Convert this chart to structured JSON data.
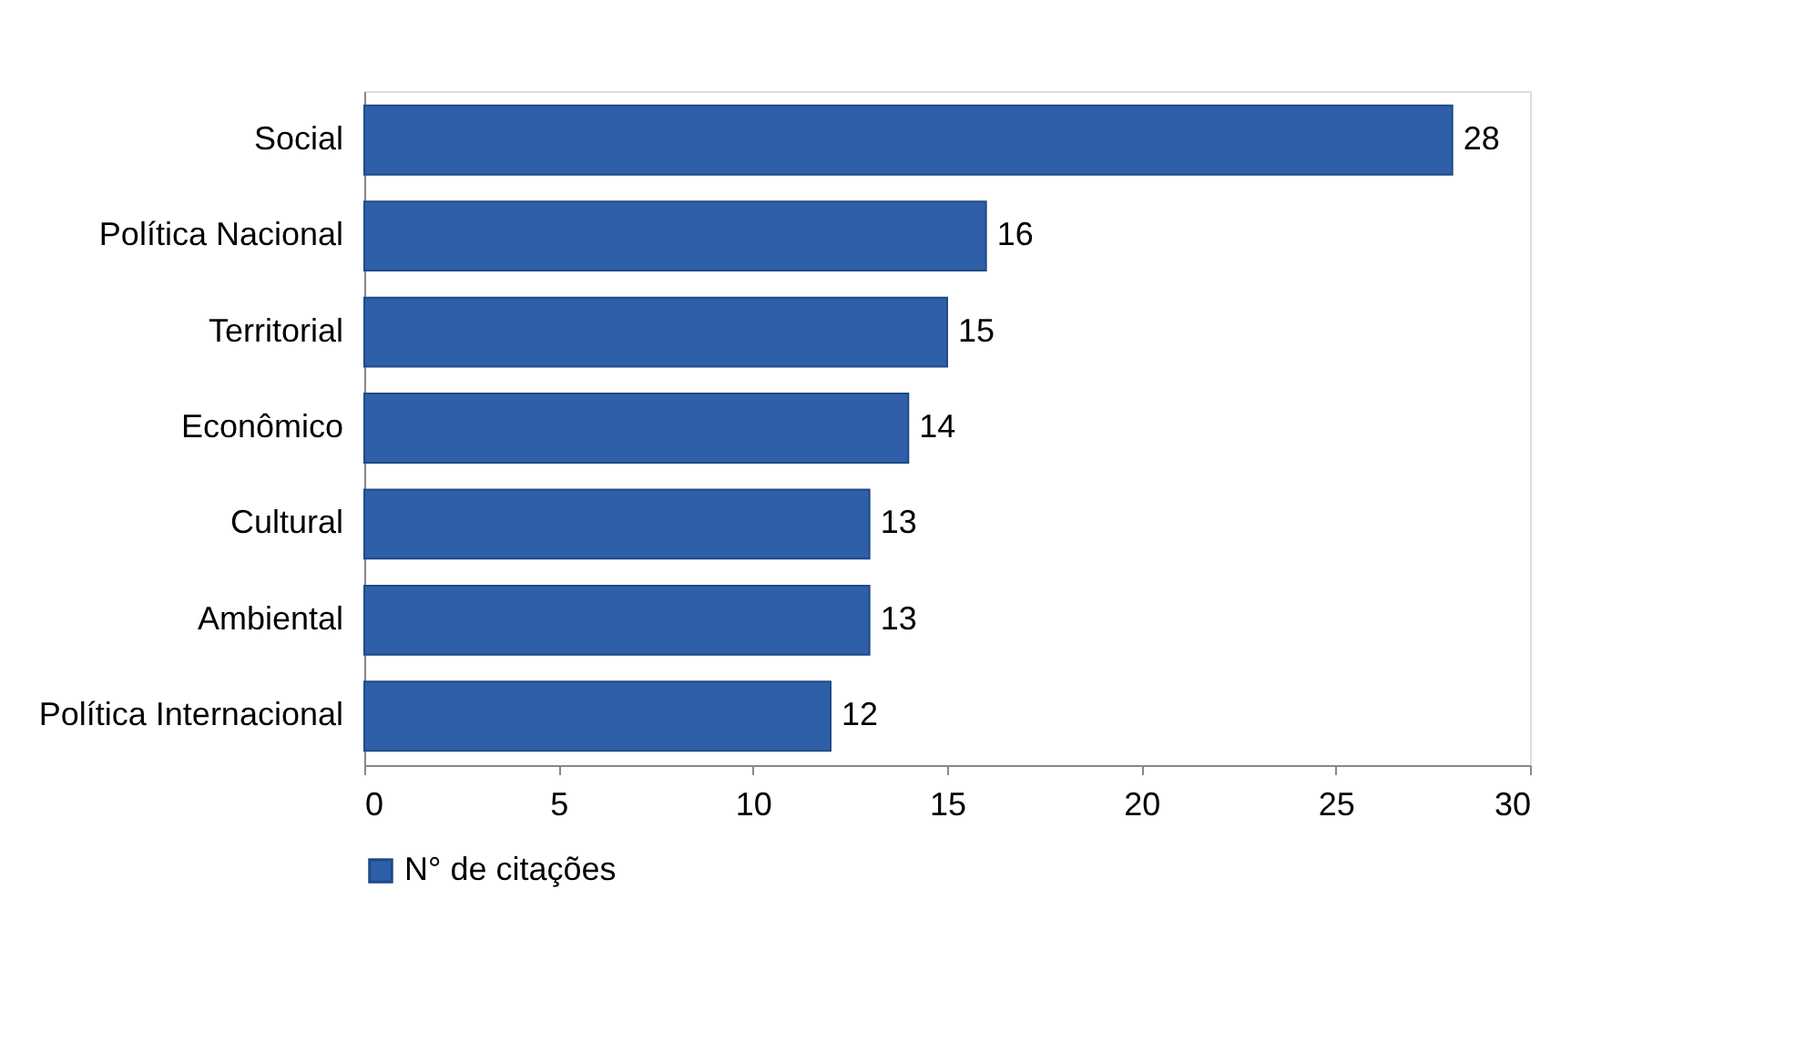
{
  "chart_data": {
    "type": "bar",
    "orientation": "horizontal",
    "categories": [
      "Social",
      "Política Nacional",
      "Territorial",
      "Econômico",
      "Cultural",
      "Ambiental",
      "Política Internacional"
    ],
    "series": [
      {
        "name": "N° de citações",
        "color": "#2e5fa8",
        "values": [
          28,
          16,
          15,
          14,
          13,
          13,
          12
        ]
      }
    ],
    "xlim": [
      0,
      30
    ],
    "xticks": [
      0,
      5,
      10,
      15,
      20,
      25,
      30
    ],
    "data_labels": true,
    "legend": "bottom"
  }
}
